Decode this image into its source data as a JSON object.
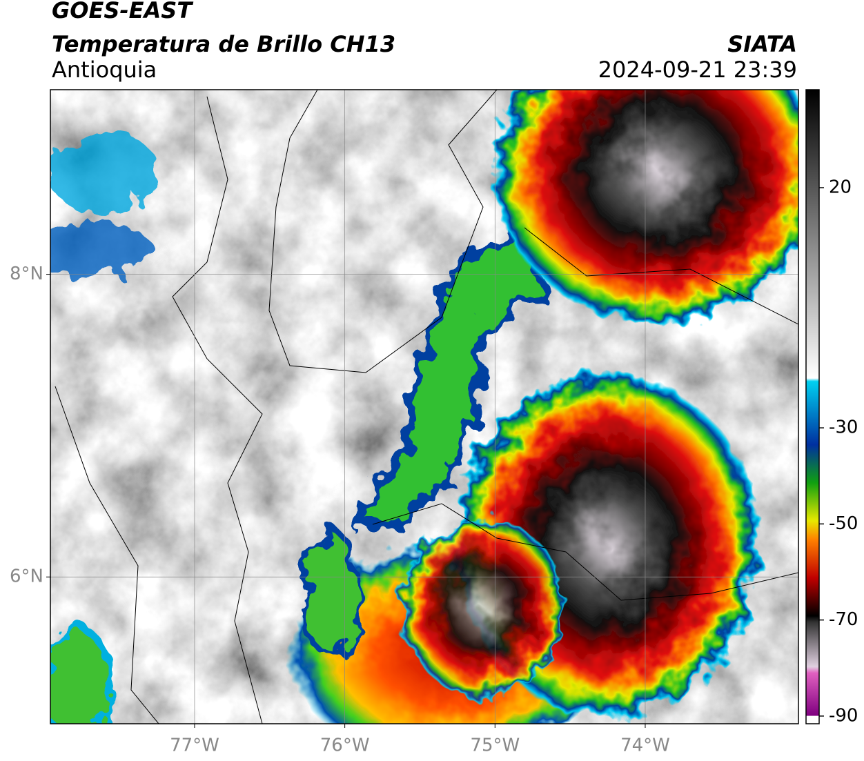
{
  "chart_data": {
    "type": "map",
    "title": "GOES-EAST",
    "subtitle": "Temperatura de Brillo CH13",
    "region": "Antioquia",
    "source": "SIATA",
    "timestamp": "2024-09-21 23:39",
    "xlim": [
      -77.96,
      -72.98
    ],
    "ylim": [
      5.03,
      9.22
    ],
    "xticks": [
      {
        "value": -77,
        "label": "77°W"
      },
      {
        "value": -76,
        "label": "76°W"
      },
      {
        "value": -75,
        "label": "75°W"
      },
      {
        "value": -74,
        "label": "74°W"
      }
    ],
    "yticks": [
      {
        "value": 6,
        "label": "6°N"
      },
      {
        "value": 8,
        "label": "8°N"
      }
    ],
    "grid": true,
    "colorbar": {
      "lim": [
        -91.6,
        40.4
      ],
      "ticks": [
        20,
        -30,
        -50,
        -70,
        -90
      ]
    }
  }
}
